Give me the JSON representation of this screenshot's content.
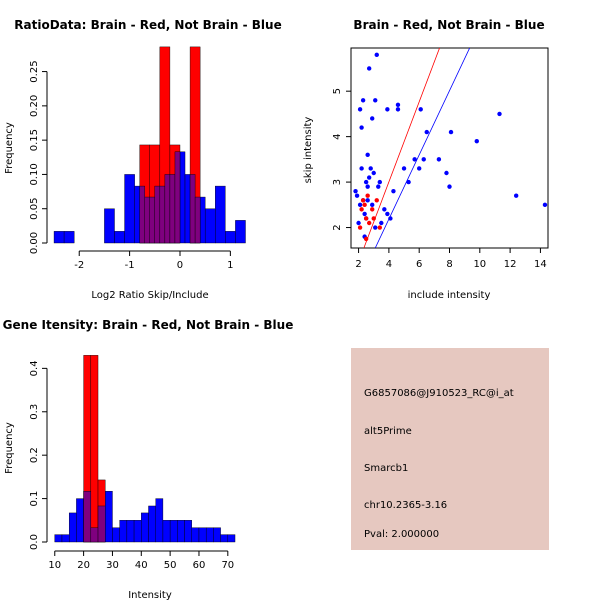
{
  "colors": {
    "red": "#ff0000",
    "blue": "#0000ff",
    "overlap": "#7f007f",
    "panel_bg": "#e6c8c0",
    "pval": "#aa0000"
  },
  "chart_data": [
    {
      "type": "bar",
      "title": "RatioData: Brain - Red, Not Brain - Blue",
      "xlabel": "Log2 Ratio Skip/Include",
      "ylabel": "Frequency",
      "xlim": [
        -2.6,
        1.35
      ],
      "ylim": [
        0,
        0.28
      ],
      "xticks": [
        -2,
        -1,
        0,
        1
      ],
      "yticks": [
        0.0,
        0.05,
        0.1,
        0.15,
        0.2,
        0.25
      ],
      "ytick_labels": [
        "0.00",
        "0.05",
        "0.10",
        "0.15",
        "0.20",
        "0.25"
      ],
      "series": [
        {
          "name": "Not Brain",
          "color": "blue",
          "bins": [
            [
              -2.5,
              -2.3,
              0.017
            ],
            [
              -2.3,
              -2.1,
              0.017
            ],
            [
              -1.5,
              -1.3,
              0.05
            ],
            [
              -1.3,
              -1.1,
              0.017
            ],
            [
              -1.1,
              -0.9,
              0.1
            ],
            [
              -0.9,
              -0.7,
              0.083
            ],
            [
              -0.7,
              -0.5,
              0.067
            ],
            [
              -0.5,
              -0.3,
              0.083
            ],
            [
              -0.3,
              -0.1,
              0.1
            ],
            [
              -0.1,
              0.1,
              0.133
            ],
            [
              0.1,
              0.3,
              0.1
            ],
            [
              0.3,
              0.5,
              0.067
            ],
            [
              0.5,
              0.7,
              0.05
            ],
            [
              0.7,
              0.9,
              0.083
            ],
            [
              0.9,
              1.1,
              0.017
            ],
            [
              1.1,
              1.3,
              0.033
            ]
          ]
        },
        {
          "name": "Brain",
          "color": "red",
          "bins": [
            [
              -0.8,
              -0.6,
              0.143
            ],
            [
              -0.6,
              -0.4,
              0.143
            ],
            [
              -0.4,
              -0.2,
              0.286
            ],
            [
              -0.2,
              0.0,
              0.143
            ],
            [
              0.2,
              0.4,
              0.286
            ]
          ]
        }
      ]
    },
    {
      "type": "scatter",
      "title": "Brain - Red, Not Brain - Blue",
      "xlabel": "include intensity",
      "ylabel": "skip intensity",
      "xlim": [
        1.5,
        14.5
      ],
      "ylim": [
        1.55,
        5.95
      ],
      "xticks": [
        2,
        4,
        6,
        8,
        10,
        12,
        14
      ],
      "yticks": [
        2,
        3,
        4,
        5
      ],
      "series": [
        {
          "name": "Not Brain",
          "color": "blue",
          "points": [
            [
              1.8,
              2.8
            ],
            [
              1.9,
              2.7
            ],
            [
              2.0,
              2.1
            ],
            [
              2.1,
              4.6
            ],
            [
              2.1,
              2.5
            ],
            [
              2.2,
              3.3
            ],
            [
              2.2,
              4.2
            ],
            [
              2.3,
              4.8
            ],
            [
              2.3,
              2.6
            ],
            [
              2.4,
              2.3
            ],
            [
              2.4,
              1.8
            ],
            [
              2.5,
              3.0
            ],
            [
              2.5,
              2.2
            ],
            [
              2.6,
              2.9
            ],
            [
              2.6,
              3.6
            ],
            [
              2.6,
              2.6
            ],
            [
              2.7,
              5.5
            ],
            [
              2.7,
              3.1
            ],
            [
              2.8,
              3.3
            ],
            [
              2.9,
              4.4
            ],
            [
              2.9,
              2.5
            ],
            [
              3.0,
              3.2
            ],
            [
              3.1,
              4.8
            ],
            [
              3.1,
              2.0
            ],
            [
              3.2,
              5.8
            ],
            [
              3.3,
              2.9
            ],
            [
              3.4,
              3.0
            ],
            [
              3.5,
              2.1
            ],
            [
              3.7,
              2.4
            ],
            [
              3.9,
              2.3
            ],
            [
              3.9,
              4.6
            ],
            [
              4.1,
              2.2
            ],
            [
              4.3,
              2.8
            ],
            [
              4.6,
              4.7
            ],
            [
              4.6,
              4.6
            ],
            [
              5.0,
              3.3
            ],
            [
              5.3,
              3.0
            ],
            [
              5.7,
              3.5
            ],
            [
              6.0,
              3.3
            ],
            [
              6.1,
              4.6
            ],
            [
              6.3,
              3.5
            ],
            [
              6.5,
              4.1
            ],
            [
              7.3,
              3.5
            ],
            [
              7.8,
              3.2
            ],
            [
              8.0,
              2.9
            ],
            [
              8.1,
              4.1
            ],
            [
              9.8,
              3.9
            ],
            [
              11.3,
              4.5
            ],
            [
              12.4,
              2.7
            ],
            [
              14.3,
              2.5
            ]
          ]
        },
        {
          "name": "Brain",
          "color": "red",
          "points": [
            [
              2.1,
              2.0
            ],
            [
              2.2,
              2.4
            ],
            [
              2.3,
              2.6
            ],
            [
              2.4,
              2.5
            ],
            [
              2.5,
              2.2
            ],
            [
              2.6,
              2.7
            ],
            [
              2.7,
              2.1
            ],
            [
              2.9,
              2.4
            ],
            [
              3.0,
              2.2
            ],
            [
              3.2,
              2.6
            ],
            [
              3.4,
              2.0
            ],
            [
              2.5,
              1.75
            ]
          ]
        }
      ],
      "lines": [
        {
          "color": "red",
          "from": [
            2.35,
            1.55
          ],
          "to": [
            7.4,
            6.0
          ]
        },
        {
          "color": "blue",
          "from": [
            3.1,
            1.55
          ],
          "to": [
            9.4,
            6.0
          ]
        }
      ]
    },
    {
      "type": "bar",
      "title": "Gene Itensity: Brain - Red, Not Brain - Blue",
      "xlabel": "Intensity",
      "ylabel": "Frequency",
      "xlim": [
        8,
        77
      ],
      "ylim": [
        0,
        0.44
      ],
      "xticks": [
        10,
        20,
        30,
        40,
        50,
        60,
        70
      ],
      "yticks": [
        0.0,
        0.1,
        0.2,
        0.3,
        0.4
      ],
      "ytick_labels": [
        "0.0",
        "0.1",
        "0.2",
        "0.3",
        "0.4"
      ],
      "series": [
        {
          "name": "Not Brain",
          "color": "blue",
          "bins": [
            [
              10,
              12.5,
              0.017
            ],
            [
              12.5,
              15,
              0.017
            ],
            [
              15,
              17.5,
              0.067
            ],
            [
              17.5,
              20,
              0.1
            ],
            [
              20,
              22.5,
              0.117
            ],
            [
              22.5,
              25,
              0.033
            ],
            [
              25,
              27.5,
              0.083
            ],
            [
              27.5,
              30,
              0.117
            ],
            [
              30,
              32.5,
              0.033
            ],
            [
              32.5,
              35,
              0.05
            ],
            [
              35,
              37.5,
              0.05
            ],
            [
              37.5,
              40,
              0.05
            ],
            [
              40,
              42.5,
              0.067
            ],
            [
              42.5,
              45,
              0.083
            ],
            [
              45,
              47.5,
              0.1
            ],
            [
              47.5,
              50,
              0.05
            ],
            [
              50,
              52.5,
              0.05
            ],
            [
              52.5,
              55,
              0.05
            ],
            [
              55,
              57.5,
              0.05
            ],
            [
              57.5,
              60,
              0.033
            ],
            [
              60,
              62.5,
              0.033
            ],
            [
              62.5,
              65,
              0.033
            ],
            [
              65,
              67.5,
              0.033
            ],
            [
              67.5,
              70,
              0.017
            ],
            [
              70,
              72.5,
              0.017
            ]
          ]
        },
        {
          "name": "Brain",
          "color": "red",
          "bins": [
            [
              20,
              22.5,
              0.43
            ],
            [
              22.5,
              25,
              0.43
            ],
            [
              25,
              27.5,
              0.143
            ]
          ]
        }
      ]
    }
  ],
  "info_panel": {
    "probe": "G6857086@J910523_RC@i_at",
    "event": "alt5Prime",
    "gene": "Smarcb1",
    "location": "chr10.2365-3.16",
    "pval": "Pval: 2.000000"
  }
}
